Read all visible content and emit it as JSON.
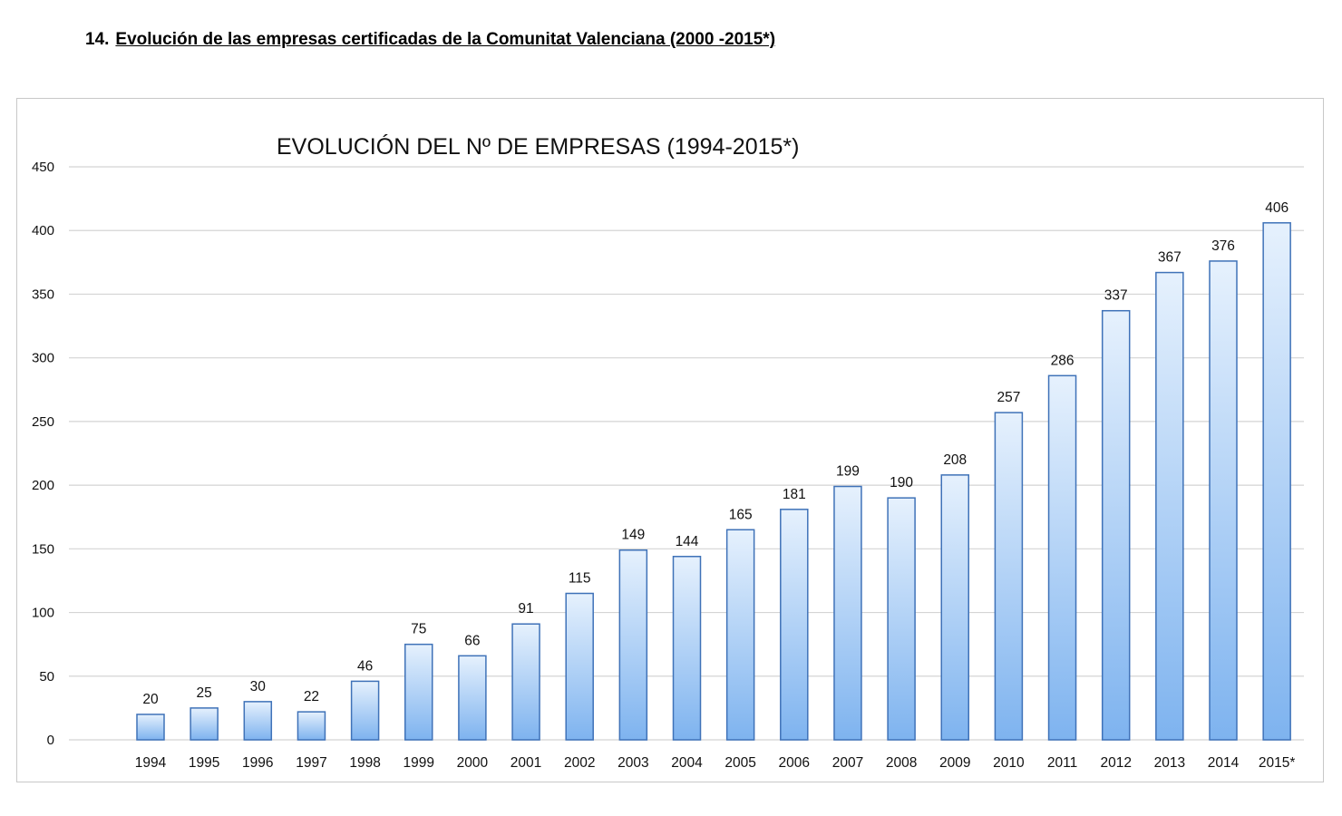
{
  "page": {
    "section_number": "14.",
    "section_title": "Evolución de las empresas certificadas de la Comunitat Valenciana (2000 -2015*)"
  },
  "chart_data": {
    "type": "bar",
    "title": "EVOLUCIÓN DEL Nº DE EMPRESAS (1994-2015*)",
    "xlabel": "",
    "ylabel": "",
    "ylim": [
      0,
      450
    ],
    "yticks": [
      0,
      50,
      100,
      150,
      200,
      250,
      300,
      350,
      400,
      450
    ],
    "grid": true,
    "legend": "none",
    "categories": [
      "1994",
      "1995",
      "1996",
      "1997",
      "1998",
      "1999",
      "2000",
      "2001",
      "2002",
      "2003",
      "2004",
      "2005",
      "2006",
      "2007",
      "2008",
      "2009",
      "2010",
      "2011",
      "2012",
      "2013",
      "2014",
      "2015*"
    ],
    "values": [
      20,
      25,
      30,
      22,
      46,
      75,
      66,
      91,
      115,
      149,
      144,
      165,
      181,
      199,
      190,
      208,
      257,
      286,
      337,
      367,
      376,
      406
    ],
    "colors": {
      "bar_top": "#e6f1fd",
      "bar_bottom": "#7eb3ef",
      "bar_stroke": "#3f72b8",
      "grid": "#d4d4d4"
    }
  }
}
